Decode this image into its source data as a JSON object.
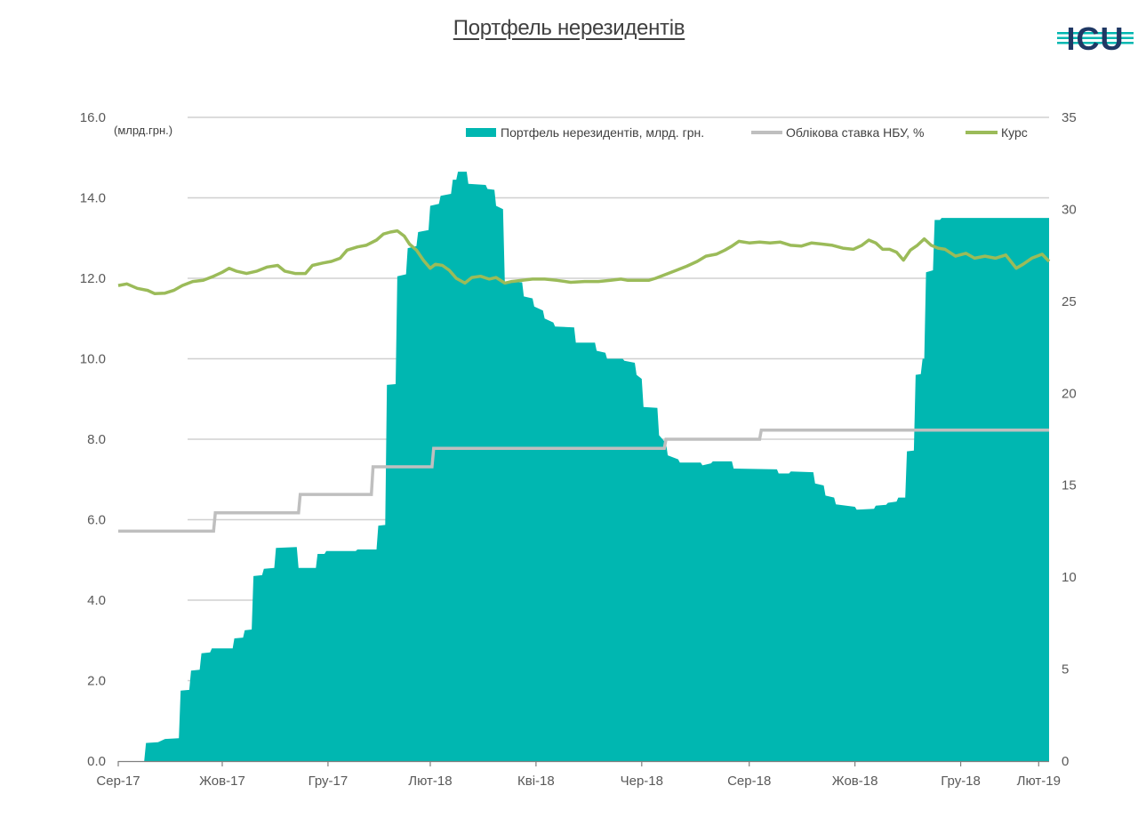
{
  "title": "Портфель нерезидентів",
  "logo_text": "ICU",
  "chart_data": {
    "type": "area",
    "left_axis_unit": "(млрд.грн.)",
    "ylim_left": [
      0,
      16
    ],
    "yticks_left": [
      "0.0",
      "2.0",
      "4.0",
      "6.0",
      "8.0",
      "10.0",
      "12.0",
      "14.0",
      "16.0"
    ],
    "ylim_right": [
      0,
      35
    ],
    "yticks_right": [
      "0",
      "5",
      "10",
      "15",
      "20",
      "25",
      "30",
      "35"
    ],
    "x_range": [
      "2017-09-01",
      "2019-02-20"
    ],
    "x_ticks": [
      {
        "date": "2017-09-01",
        "label": "Сер-17"
      },
      {
        "date": "2017-10-31",
        "label": "Жов-17"
      },
      {
        "date": "2017-12-31",
        "label": "Гру-17"
      },
      {
        "date": "2018-02-28",
        "label": "Лют-18"
      },
      {
        "date": "2018-04-30",
        "label": "Кві-18"
      },
      {
        "date": "2018-06-30",
        "label": "Чер-18"
      },
      {
        "date": "2018-08-31",
        "label": "Сер-18"
      },
      {
        "date": "2018-10-31",
        "label": "Жов-18"
      },
      {
        "date": "2018-12-31",
        "label": "Гру-18"
      },
      {
        "date": "2019-02-14",
        "label": "Лют-19"
      }
    ],
    "grid": "horizontal",
    "legend_position": "top-right",
    "colors": {
      "portfolio": "#00b7b1",
      "rate": "#bfbfbf",
      "fx": "#9bbb59",
      "grid": "#d0d0d0",
      "axis": "#7f7f7f"
    },
    "series": [
      {
        "name": "Портфель нерезидентів, млрд. грн.",
        "axis": "left",
        "type": "area",
        "points": [
          [
            "2017-09-01",
            0
          ],
          [
            "2017-09-16",
            0
          ],
          [
            "2017-09-17",
            0.45
          ],
          [
            "2017-09-24",
            0.47
          ],
          [
            "2017-09-28",
            0.55
          ],
          [
            "2017-10-06",
            0.57
          ],
          [
            "2017-10-07",
            1.75
          ],
          [
            "2017-10-12",
            1.77
          ],
          [
            "2017-10-13",
            2.25
          ],
          [
            "2017-10-18",
            2.27
          ],
          [
            "2017-10-19",
            2.68
          ],
          [
            "2017-10-24",
            2.7
          ],
          [
            "2017-10-25",
            2.8
          ],
          [
            "2017-11-06",
            2.8
          ],
          [
            "2017-11-07",
            3.05
          ],
          [
            "2017-11-12",
            3.07
          ],
          [
            "2017-11-13",
            3.25
          ],
          [
            "2017-11-17",
            3.27
          ],
          [
            "2017-11-18",
            4.6
          ],
          [
            "2017-11-23",
            4.62
          ],
          [
            "2017-11-24",
            4.78
          ],
          [
            "2017-11-30",
            4.8
          ],
          [
            "2017-12-01",
            5.3
          ],
          [
            "2017-12-13",
            5.32
          ],
          [
            "2017-12-14",
            4.8
          ],
          [
            "2017-12-24",
            4.8
          ],
          [
            "2017-12-25",
            5.15
          ],
          [
            "2017-12-29",
            5.15
          ],
          [
            "2017-12-30",
            5.22
          ],
          [
            "2018-01-16",
            5.22
          ],
          [
            "2018-01-17",
            5.26
          ],
          [
            "2018-01-28",
            5.26
          ],
          [
            "2018-01-29",
            5.85
          ],
          [
            "2018-02-02",
            5.87
          ],
          [
            "2018-02-03",
            9.35
          ],
          [
            "2018-02-08",
            9.37
          ],
          [
            "2018-02-09",
            12.05
          ],
          [
            "2018-02-14",
            12.1
          ],
          [
            "2018-02-15",
            12.75
          ],
          [
            "2018-02-20",
            12.8
          ],
          [
            "2018-02-21",
            13.15
          ],
          [
            "2018-02-27",
            13.2
          ],
          [
            "2018-02-28",
            13.8
          ],
          [
            "2018-03-05",
            13.85
          ],
          [
            "2018-03-06",
            14.05
          ],
          [
            "2018-03-12",
            14.1
          ],
          [
            "2018-03-13",
            14.45
          ],
          [
            "2018-03-15",
            14.45
          ],
          [
            "2018-03-16",
            14.65
          ],
          [
            "2018-03-21",
            14.65
          ],
          [
            "2018-03-22",
            14.35
          ],
          [
            "2018-04-01",
            14.32
          ],
          [
            "2018-04-02",
            14.22
          ],
          [
            "2018-04-06",
            14.2
          ],
          [
            "2018-04-07",
            13.8
          ],
          [
            "2018-04-11",
            13.72
          ],
          [
            "2018-04-12",
            11.9
          ],
          [
            "2018-04-22",
            11.9
          ],
          [
            "2018-04-23",
            11.55
          ],
          [
            "2018-04-28",
            11.5
          ],
          [
            "2018-04-29",
            11.3
          ],
          [
            "2018-05-04",
            11.2
          ],
          [
            "2018-05-05",
            11.0
          ],
          [
            "2018-05-10",
            10.9
          ],
          [
            "2018-05-11",
            10.8
          ],
          [
            "2018-05-22",
            10.78
          ],
          [
            "2018-05-23",
            10.4
          ],
          [
            "2018-06-03",
            10.4
          ],
          [
            "2018-06-04",
            10.2
          ],
          [
            "2018-06-09",
            10.15
          ],
          [
            "2018-06-10",
            10.0
          ],
          [
            "2018-06-19",
            10.0
          ],
          [
            "2018-06-20",
            9.95
          ],
          [
            "2018-06-26",
            9.9
          ],
          [
            "2018-06-27",
            9.6
          ],
          [
            "2018-06-30",
            9.5
          ],
          [
            "2018-07-01",
            8.8
          ],
          [
            "2018-07-09",
            8.78
          ],
          [
            "2018-07-10",
            8.1
          ],
          [
            "2018-07-14",
            7.9
          ],
          [
            "2018-07-15",
            7.6
          ],
          [
            "2018-07-21",
            7.5
          ],
          [
            "2018-07-22",
            7.42
          ],
          [
            "2018-08-03",
            7.42
          ],
          [
            "2018-08-04",
            7.35
          ],
          [
            "2018-08-09",
            7.4
          ],
          [
            "2018-08-10",
            7.45
          ],
          [
            "2018-08-21",
            7.45
          ],
          [
            "2018-08-22",
            7.27
          ],
          [
            "2018-09-16",
            7.25
          ],
          [
            "2018-09-17",
            7.15
          ],
          [
            "2018-09-23",
            7.15
          ],
          [
            "2018-09-24",
            7.2
          ],
          [
            "2018-10-07",
            7.18
          ],
          [
            "2018-10-08",
            6.9
          ],
          [
            "2018-10-13",
            6.85
          ],
          [
            "2018-10-14",
            6.6
          ],
          [
            "2018-10-19",
            6.55
          ],
          [
            "2018-10-20",
            6.38
          ],
          [
            "2018-10-31",
            6.32
          ],
          [
            "2018-11-01",
            6.25
          ],
          [
            "2018-11-11",
            6.27
          ],
          [
            "2018-11-12",
            6.35
          ],
          [
            "2018-11-18",
            6.37
          ],
          [
            "2018-11-19",
            6.42
          ],
          [
            "2018-11-24",
            6.45
          ],
          [
            "2018-11-25",
            6.55
          ],
          [
            "2018-11-29",
            6.55
          ],
          [
            "2018-11-30",
            7.7
          ],
          [
            "2018-12-04",
            7.72
          ],
          [
            "2018-12-05",
            9.6
          ],
          [
            "2018-12-08",
            9.62
          ],
          [
            "2018-12-09",
            10.0
          ],
          [
            "2018-12-10",
            10.0
          ],
          [
            "2018-12-11",
            12.15
          ],
          [
            "2018-12-15",
            12.2
          ],
          [
            "2018-12-16",
            13.45
          ],
          [
            "2018-12-19",
            13.45
          ],
          [
            "2018-12-20",
            13.5
          ],
          [
            "2018-12-22",
            13.5
          ]
        ]
      },
      {
        "name": "Облікова ставка НБУ, %",
        "axis": "right",
        "type": "step",
        "points": [
          [
            "2017-09-01",
            12.5
          ],
          [
            "2017-10-26",
            12.5
          ],
          [
            "2017-10-27",
            13.5
          ],
          [
            "2017-12-14",
            13.5
          ],
          [
            "2017-12-15",
            14.5
          ],
          [
            "2018-01-25",
            14.5
          ],
          [
            "2018-01-26",
            16.0
          ],
          [
            "2018-03-01",
            16.0
          ],
          [
            "2018-03-02",
            17.0
          ],
          [
            "2018-07-13",
            17.0
          ],
          [
            "2018-07-14",
            17.5
          ],
          [
            "2018-09-06",
            17.5
          ],
          [
            "2018-09-07",
            18.0
          ],
          [
            "2018-12-22",
            18.0
          ]
        ]
      },
      {
        "name": "Курс",
        "axis": "left",
        "type": "line",
        "points": [
          [
            "2017-09-01",
            11.82
          ],
          [
            "2017-09-06",
            11.86
          ],
          [
            "2017-09-12",
            11.75
          ],
          [
            "2017-09-18",
            11.7
          ],
          [
            "2017-09-22",
            11.62
          ],
          [
            "2017-09-28",
            11.63
          ],
          [
            "2017-10-03",
            11.7
          ],
          [
            "2017-10-08",
            11.82
          ],
          [
            "2017-10-14",
            11.92
          ],
          [
            "2017-10-20",
            11.95
          ],
          [
            "2017-10-26",
            12.05
          ],
          [
            "2017-10-31",
            12.15
          ],
          [
            "2017-11-04",
            12.25
          ],
          [
            "2017-11-08",
            12.18
          ],
          [
            "2017-11-14",
            12.12
          ],
          [
            "2017-11-20",
            12.18
          ],
          [
            "2017-11-26",
            12.28
          ],
          [
            "2017-12-02",
            12.32
          ],
          [
            "2017-12-06",
            12.18
          ],
          [
            "2017-12-12",
            12.12
          ],
          [
            "2017-12-18",
            12.12
          ],
          [
            "2017-12-22",
            12.32
          ],
          [
            "2017-12-28",
            12.38
          ],
          [
            "2018-01-02",
            12.42
          ],
          [
            "2018-01-07",
            12.5
          ],
          [
            "2018-01-11",
            12.7
          ],
          [
            "2018-01-17",
            12.78
          ],
          [
            "2018-01-22",
            12.82
          ],
          [
            "2018-01-28",
            12.95
          ],
          [
            "2018-02-01",
            13.1
          ],
          [
            "2018-02-05",
            13.15
          ],
          [
            "2018-02-09",
            13.18
          ],
          [
            "2018-02-13",
            13.05
          ],
          [
            "2018-02-16",
            12.85
          ],
          [
            "2018-02-20",
            12.7
          ],
          [
            "2018-02-24",
            12.45
          ],
          [
            "2018-02-28",
            12.25
          ],
          [
            "2018-03-03",
            12.35
          ],
          [
            "2018-03-07",
            12.32
          ],
          [
            "2018-03-11",
            12.2
          ],
          [
            "2018-03-15",
            12.0
          ],
          [
            "2018-03-20",
            11.88
          ],
          [
            "2018-03-24",
            12.02
          ],
          [
            "2018-03-29",
            12.05
          ],
          [
            "2018-04-03",
            11.98
          ],
          [
            "2018-04-07",
            12.02
          ],
          [
            "2018-04-12",
            11.88
          ],
          [
            "2018-04-16",
            11.92
          ],
          [
            "2018-04-22",
            11.95
          ],
          [
            "2018-04-28",
            11.98
          ],
          [
            "2018-05-05",
            11.98
          ],
          [
            "2018-05-12",
            11.95
          ],
          [
            "2018-05-20",
            11.9
          ],
          [
            "2018-05-28",
            11.92
          ],
          [
            "2018-06-05",
            11.92
          ],
          [
            "2018-06-12",
            11.95
          ],
          [
            "2018-06-18",
            11.98
          ],
          [
            "2018-06-22",
            11.95
          ],
          [
            "2018-06-28",
            11.95
          ],
          [
            "2018-07-04",
            11.95
          ],
          [
            "2018-07-08",
            12.0
          ],
          [
            "2018-07-14",
            12.1
          ],
          [
            "2018-07-20",
            12.2
          ],
          [
            "2018-07-26",
            12.3
          ],
          [
            "2018-08-01",
            12.42
          ],
          [
            "2018-08-06",
            12.55
          ],
          [
            "2018-08-12",
            12.6
          ],
          [
            "2018-08-17",
            12.7
          ],
          [
            "2018-08-21",
            12.8
          ],
          [
            "2018-08-25",
            12.92
          ],
          [
            "2018-08-31",
            12.88
          ],
          [
            "2018-09-06",
            12.9
          ],
          [
            "2018-09-12",
            12.88
          ],
          [
            "2018-09-18",
            12.9
          ],
          [
            "2018-09-24",
            12.82
          ],
          [
            "2018-09-30",
            12.8
          ],
          [
            "2018-10-06",
            12.88
          ],
          [
            "2018-10-12",
            12.85
          ],
          [
            "2018-10-18",
            12.82
          ],
          [
            "2018-10-24",
            12.75
          ],
          [
            "2018-10-30",
            12.72
          ],
          [
            "2018-11-04",
            12.82
          ],
          [
            "2018-11-08",
            12.95
          ],
          [
            "2018-11-12",
            12.88
          ],
          [
            "2018-11-16",
            12.72
          ],
          [
            "2018-11-20",
            12.72
          ],
          [
            "2018-11-24",
            12.65
          ],
          [
            "2018-11-28",
            12.45
          ],
          [
            "2018-12-02",
            12.7
          ],
          [
            "2018-12-06",
            12.82
          ],
          [
            "2018-12-10",
            12.98
          ],
          [
            "2018-12-14",
            12.82
          ],
          [
            "2018-12-18",
            12.75
          ],
          [
            "2018-12-22",
            12.72
          ],
          [
            "2018-12-28",
            12.55
          ],
          [
            "2019-01-03",
            12.62
          ],
          [
            "2019-01-08",
            12.5
          ],
          [
            "2019-01-14",
            12.55
          ],
          [
            "2019-01-20",
            12.5
          ],
          [
            "2019-01-26",
            12.58
          ],
          [
            "2019-02-01",
            12.25
          ],
          [
            "2019-02-05",
            12.35
          ],
          [
            "2019-02-10",
            12.5
          ],
          [
            "2019-02-16",
            12.6
          ],
          [
            "2019-02-20",
            12.42
          ]
        ]
      }
    ]
  }
}
